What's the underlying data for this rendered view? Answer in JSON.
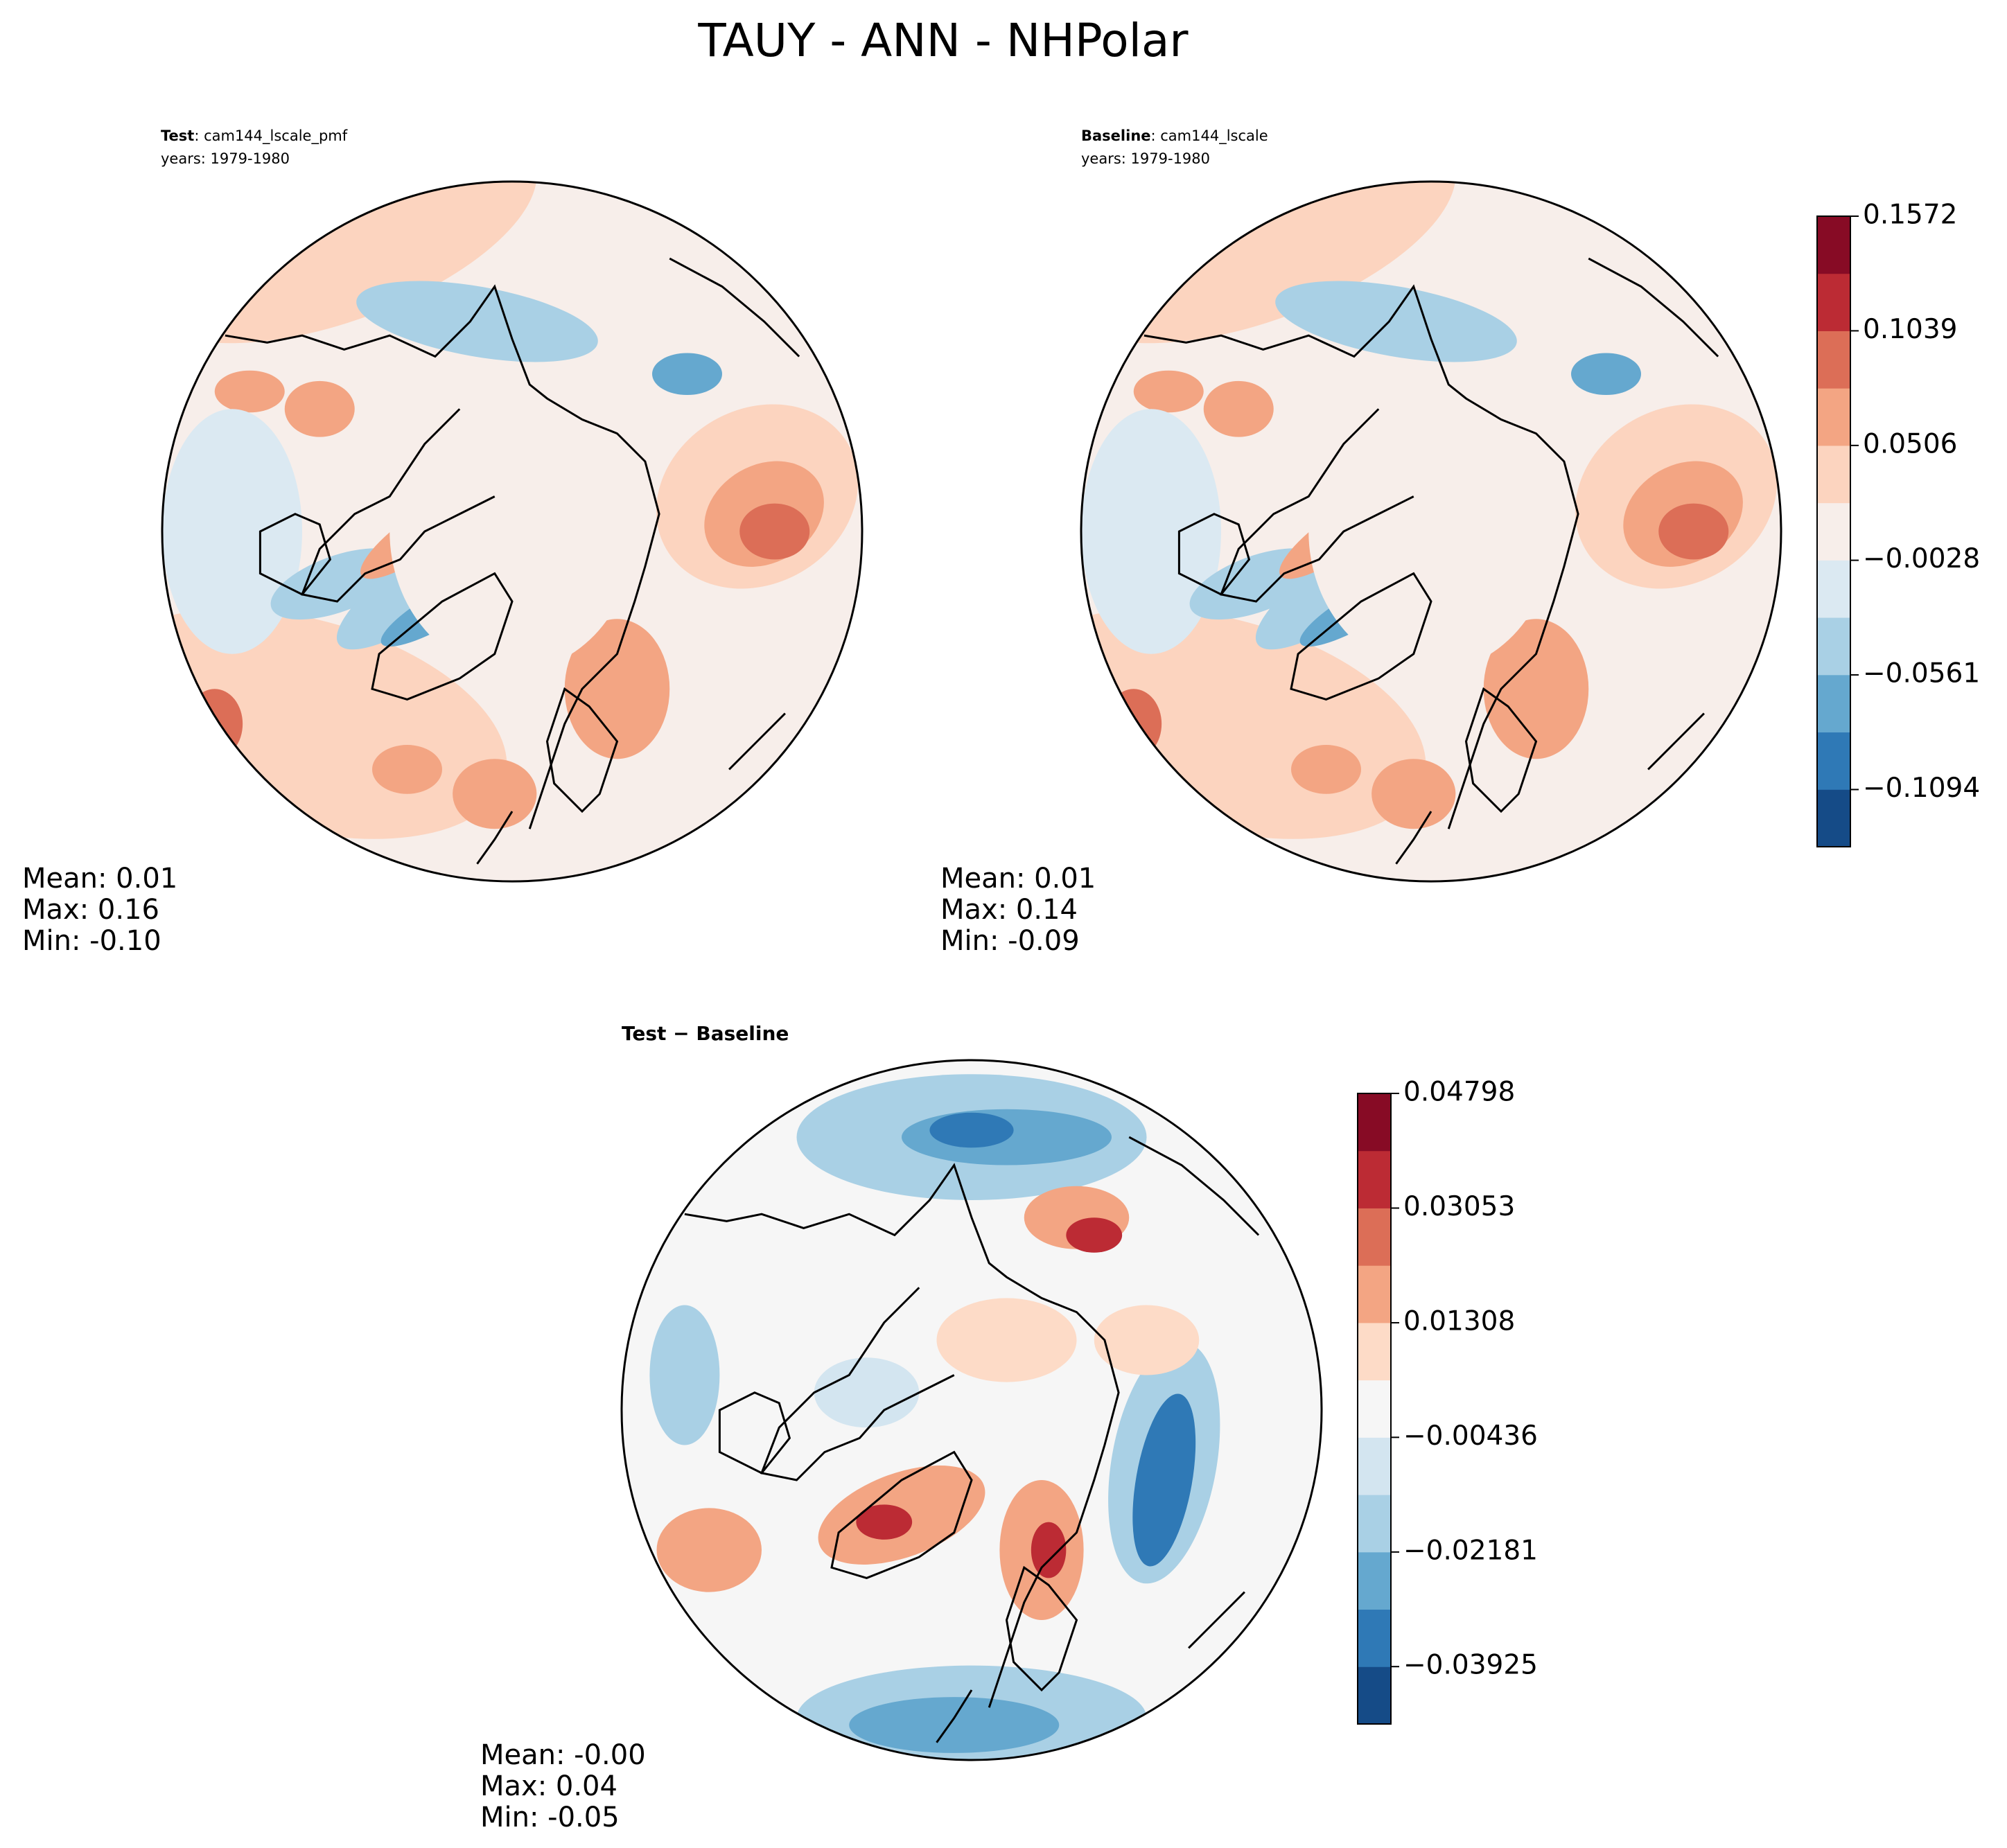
{
  "title": "TAUY - ANN - NHPolar",
  "chart_data": [
    {
      "type": "contour",
      "label": "Test",
      "case": ": cam144_lscale_pmf",
      "years": "years: 1979-1980",
      "stats": [
        "Mean:  0.01",
        "Max:  0.16",
        "Min: -0.10"
      ]
    },
    {
      "type": "contour",
      "label": "Baseline",
      "case": ": cam144_lscale",
      "years": "years: 1979-1980",
      "stats": [
        "Mean:  0.01",
        "Max:  0.14",
        "Min: -0.09"
      ],
      "colors": [
        "#154b87",
        "#2f79b6",
        "#65a8cf",
        "#a9d0e5",
        "#dbe9f2",
        "#f7eeea",
        "#fcd4bf",
        "#f3a583",
        "#dc6e57",
        "#bc2b34",
        "#870b25"
      ],
      "ylim": [
        -0.136,
        0.1572
      ],
      "yticks": [
        {
          "value": -0.1094,
          "label": "−0.1094"
        },
        {
          "value": -0.0561,
          "label": "−0.0561"
        },
        {
          "value": -0.0028,
          "label": "−0.0028"
        },
        0.0506,
        0.1039,
        0.1572
      ]
    },
    {
      "type": "contour",
      "title": "Test − Baseline",
      "stats": [
        "Mean: -0.00",
        "Max:  0.04",
        "Min: -0.05"
      ],
      "colors": [
        "#154b87",
        "#2f79b6",
        "#65a8cf",
        "#a9d0e5",
        "#d3e5f0",
        "#f6f6f6",
        "#fddbc7",
        "#f3a583",
        "#dc6e57",
        "#bc2b34",
        "#870b25"
      ],
      "ylim": [
        -0.04798,
        0.04798
      ],
      "yticks": [
        {
          "value": -0.03925,
          "label": "−0.03925"
        },
        {
          "value": -0.02181,
          "label": "−0.02181"
        },
        {
          "value": -0.00436,
          "label": "−0.00436"
        },
        0.01308,
        0.03053,
        0.04798
      ]
    }
  ]
}
